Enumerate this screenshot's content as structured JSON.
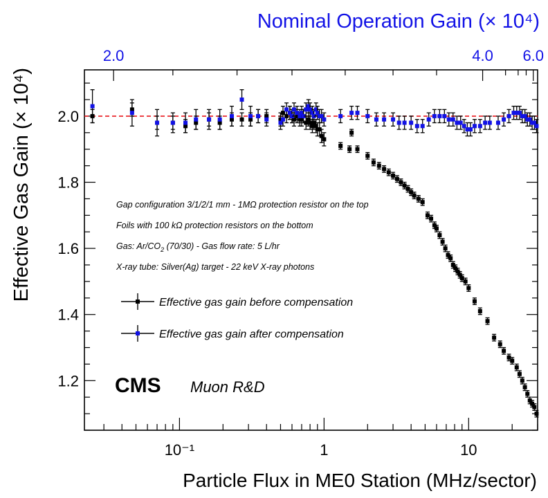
{
  "chart_data": {
    "type": "scatter",
    "title": "",
    "xlabel": "Particle Flux in ME0 Station (MHz/sector)",
    "ylabel": "Effective Gas Gain (× 10⁴)",
    "top_axis_label": "Nominal Operation Gain (× 10⁴)",
    "x_scale": "log",
    "xlim": [
      0.022,
      30
    ],
    "ylim": [
      1.05,
      2.14
    ],
    "x_tick_labels": [
      "10⁻¹",
      "1",
      "10"
    ],
    "x_tick_values": [
      0.1,
      1,
      10
    ],
    "y_tick_labels": [
      "1.2",
      "1.4",
      "1.6",
      "1.8",
      "2.0"
    ],
    "y_tick_values": [
      1.2,
      1.4,
      1.6,
      1.8,
      2.0
    ],
    "top_tick_labels": [
      "2.0",
      "4.0",
      "6.0"
    ],
    "top_tick_flux": [
      0.035,
      12.5,
      28
    ],
    "reference_line": {
      "y": 2.0,
      "style": "dashed",
      "color": "#e8161b"
    },
    "colors": {
      "before": "#000000",
      "after": "#1212e6",
      "top_axis": "#1212e6"
    },
    "annotations": [
      "Gap configuration 3/1/2/1 mm - 1MΩ protection resistor on the top",
      "Foils with 100 kΩ protection resistors on the bottom",
      "Gas: Ar/CO",
      "2",
      " (70/30)  - Gas flow rate: 5 L/hr",
      "X-ray tube: Silver(Ag) target - 22 keV X-ray photons"
    ],
    "cms_label": "CMS",
    "cms_sublabel": "Muon R&D",
    "series": [
      {
        "name": "Effective gas gain before compensation",
        "color": "#000000",
        "points": [
          [
            0.025,
            2.0,
            0.02
          ],
          [
            0.047,
            2.02,
            0.02
          ],
          [
            0.07,
            1.98,
            0.02
          ],
          [
            0.09,
            1.98,
            0.02
          ],
          [
            0.11,
            1.97,
            0.02
          ],
          [
            0.13,
            1.98,
            0.02
          ],
          [
            0.16,
            1.99,
            0.02
          ],
          [
            0.19,
            1.98,
            0.02
          ],
          [
            0.23,
            1.99,
            0.02
          ],
          [
            0.27,
            1.99,
            0.02
          ],
          [
            0.31,
            1.99,
            0.02
          ],
          [
            0.35,
            2.0,
            0.02
          ],
          [
            0.4,
            2.0,
            0.02
          ],
          [
            0.5,
            1.99,
            0.02
          ],
          [
            0.52,
            2.01,
            0.02
          ],
          [
            0.55,
            2.0,
            0.02
          ],
          [
            0.58,
            2.01,
            0.02
          ],
          [
            0.6,
            2.0,
            0.02
          ],
          [
            0.62,
            1.99,
            0.02
          ],
          [
            0.65,
            2.0,
            0.02
          ],
          [
            0.68,
            1.99,
            0.02
          ],
          [
            0.7,
            1.99,
            0.02
          ],
          [
            0.72,
            2.0,
            0.02
          ],
          [
            0.75,
            1.98,
            0.02
          ],
          [
            0.78,
            1.99,
            0.02
          ],
          [
            0.8,
            1.98,
            0.02
          ],
          [
            0.83,
            1.97,
            0.02
          ],
          [
            0.85,
            1.98,
            0.02
          ],
          [
            0.88,
            1.97,
            0.02
          ],
          [
            0.9,
            1.96,
            0.02
          ],
          [
            0.93,
            1.96,
            0.02
          ],
          [
            0.96,
            1.94,
            0.02
          ],
          [
            1.0,
            1.93,
            0.02
          ],
          [
            1.3,
            1.91,
            0.01
          ],
          [
            1.5,
            1.9,
            0.01
          ],
          [
            1.55,
            1.95,
            0.01
          ],
          [
            1.7,
            1.9,
            0.01
          ],
          [
            2.0,
            1.88,
            0.01
          ],
          [
            2.2,
            1.86,
            0.01
          ],
          [
            2.4,
            1.85,
            0.01
          ],
          [
            2.6,
            1.84,
            0.01
          ],
          [
            2.8,
            1.83,
            0.01
          ],
          [
            3.0,
            1.82,
            0.01
          ],
          [
            3.2,
            1.81,
            0.01
          ],
          [
            3.4,
            1.8,
            0.01
          ],
          [
            3.6,
            1.79,
            0.01
          ],
          [
            3.8,
            1.78,
            0.01
          ],
          [
            4.0,
            1.77,
            0.01
          ],
          [
            4.2,
            1.76,
            0.01
          ],
          [
            4.5,
            1.75,
            0.01
          ],
          [
            4.8,
            1.74,
            0.01
          ],
          [
            5.2,
            1.7,
            0.01
          ],
          [
            5.5,
            1.69,
            0.01
          ],
          [
            5.8,
            1.67,
            0.01
          ],
          [
            6.0,
            1.66,
            0.01
          ],
          [
            6.3,
            1.64,
            0.01
          ],
          [
            6.6,
            1.62,
            0.01
          ],
          [
            6.9,
            1.6,
            0.01
          ],
          [
            7.2,
            1.58,
            0.01
          ],
          [
            7.5,
            1.57,
            0.01
          ],
          [
            7.8,
            1.55,
            0.01
          ],
          [
            8.1,
            1.54,
            0.01
          ],
          [
            8.4,
            1.53,
            0.01
          ],
          [
            8.7,
            1.52,
            0.01
          ],
          [
            9.0,
            1.51,
            0.01
          ],
          [
            9.5,
            1.5,
            0.01
          ],
          [
            10.0,
            1.48,
            0.01
          ],
          [
            11.0,
            1.44,
            0.01
          ],
          [
            12.0,
            1.41,
            0.01
          ],
          [
            13.5,
            1.38,
            0.01
          ],
          [
            15.0,
            1.33,
            0.01
          ],
          [
            16.5,
            1.31,
            0.01
          ],
          [
            17.5,
            1.29,
            0.01
          ],
          [
            19.0,
            1.27,
            0.01
          ],
          [
            20.0,
            1.26,
            0.01
          ],
          [
            21.5,
            1.24,
            0.01
          ],
          [
            22.5,
            1.22,
            0.01
          ],
          [
            23.5,
            1.2,
            0.01
          ],
          [
            24.5,
            1.18,
            0.01
          ],
          [
            25.5,
            1.16,
            0.01
          ],
          [
            26.5,
            1.14,
            0.01
          ],
          [
            27.5,
            1.13,
            0.01
          ],
          [
            28.5,
            1.12,
            0.01
          ],
          [
            29.5,
            1.1,
            0.01
          ]
        ]
      },
      {
        "name": "Effective gas gain after compensation",
        "color": "#1212e6",
        "points": [
          [
            0.025,
            2.03,
            0.05
          ],
          [
            0.047,
            2.01,
            0.04
          ],
          [
            0.07,
            1.98,
            0.04
          ],
          [
            0.09,
            1.98,
            0.03
          ],
          [
            0.11,
            1.98,
            0.03
          ],
          [
            0.13,
            1.99,
            0.03
          ],
          [
            0.16,
            1.99,
            0.03
          ],
          [
            0.19,
            1.99,
            0.03
          ],
          [
            0.23,
            2.0,
            0.03
          ],
          [
            0.27,
            2.05,
            0.03
          ],
          [
            0.31,
            2.0,
            0.03
          ],
          [
            0.35,
            2.0,
            0.02
          ],
          [
            0.4,
            1.99,
            0.02
          ],
          [
            0.5,
            1.98,
            0.02
          ],
          [
            0.52,
            1.99,
            0.02
          ],
          [
            0.55,
            2.02,
            0.02
          ],
          [
            0.58,
            2.01,
            0.02
          ],
          [
            0.6,
            2.0,
            0.02
          ],
          [
            0.62,
            2.02,
            0.02
          ],
          [
            0.65,
            2.01,
            0.02
          ],
          [
            0.68,
            2.0,
            0.02
          ],
          [
            0.7,
            2.01,
            0.02
          ],
          [
            0.72,
            2.0,
            0.02
          ],
          [
            0.75,
            2.02,
            0.02
          ],
          [
            0.78,
            2.03,
            0.02
          ],
          [
            0.8,
            2.02,
            0.02
          ],
          [
            0.83,
            2.01,
            0.02
          ],
          [
            0.85,
            2.0,
            0.02
          ],
          [
            0.88,
            2.02,
            0.02
          ],
          [
            0.9,
            2.01,
            0.02
          ],
          [
            0.93,
            2.0,
            0.02
          ],
          [
            0.96,
            2.0,
            0.02
          ],
          [
            1.0,
            1.99,
            0.02
          ],
          [
            1.3,
            2.0,
            0.02
          ],
          [
            1.55,
            2.01,
            0.02
          ],
          [
            1.7,
            2.01,
            0.02
          ],
          [
            2.0,
            2.0,
            0.02
          ],
          [
            2.3,
            1.99,
            0.02
          ],
          [
            2.6,
            1.99,
            0.02
          ],
          [
            3.0,
            1.99,
            0.02
          ],
          [
            3.3,
            1.98,
            0.02
          ],
          [
            3.6,
            1.98,
            0.02
          ],
          [
            4.0,
            1.98,
            0.02
          ],
          [
            4.4,
            1.97,
            0.02
          ],
          [
            4.8,
            1.97,
            0.02
          ],
          [
            5.3,
            1.99,
            0.02
          ],
          [
            5.8,
            2.0,
            0.02
          ],
          [
            6.3,
            2.0,
            0.02
          ],
          [
            6.8,
            2.0,
            0.02
          ],
          [
            7.3,
            1.99,
            0.02
          ],
          [
            7.8,
            1.99,
            0.02
          ],
          [
            8.3,
            1.98,
            0.02
          ],
          [
            8.8,
            1.98,
            0.02
          ],
          [
            9.3,
            1.97,
            0.02
          ],
          [
            9.8,
            1.96,
            0.02
          ],
          [
            10.3,
            1.96,
            0.02
          ],
          [
            11.0,
            1.97,
            0.02
          ],
          [
            12.0,
            1.97,
            0.02
          ],
          [
            13.0,
            1.98,
            0.02
          ],
          [
            14.0,
            1.98,
            0.02
          ],
          [
            16.0,
            1.98,
            0.02
          ],
          [
            17.5,
            1.99,
            0.02
          ],
          [
            19.0,
            2.0,
            0.02
          ],
          [
            20.5,
            2.01,
            0.02
          ],
          [
            21.5,
            2.01,
            0.02
          ],
          [
            22.5,
            2.01,
            0.02
          ],
          [
            23.5,
            2.0,
            0.02
          ],
          [
            24.5,
            2.0,
            0.02
          ],
          [
            25.5,
            1.99,
            0.02
          ],
          [
            26.5,
            1.99,
            0.02
          ],
          [
            27.5,
            1.98,
            0.02
          ],
          [
            28.5,
            1.98,
            0.02
          ],
          [
            29.5,
            1.97,
            0.02
          ]
        ]
      }
    ]
  }
}
